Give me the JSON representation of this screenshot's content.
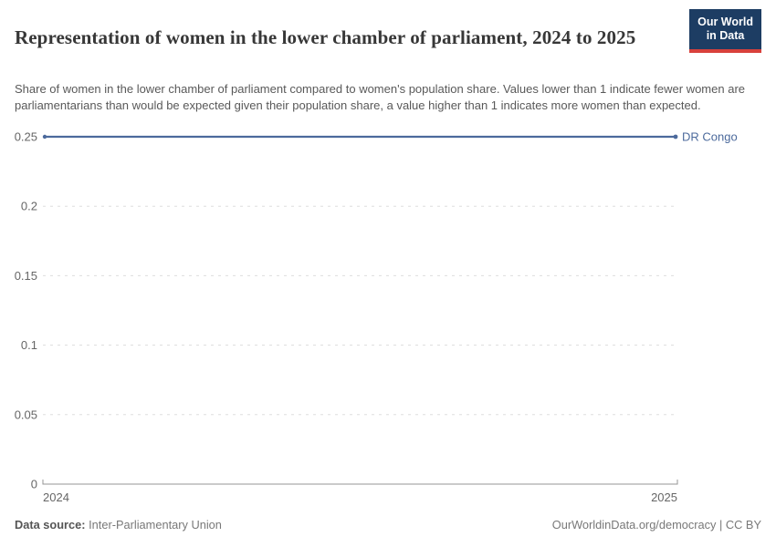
{
  "header": {
    "title": "Representation of women in the lower chamber of parliament, 2024 to 2025",
    "subtitle": "Share of women in the lower chamber of parliament compared to women's population share. Values lower than 1 indicate fewer women are parliamentarians than would be expected given their population share, a value higher than 1 indicates more women than expected.",
    "logo": {
      "line1": "Our World",
      "line2": "in Data",
      "bg_color": "#1d3d63",
      "accent_color": "#d8413c"
    }
  },
  "chart_data": {
    "type": "line",
    "title": "Representation of women in the lower chamber of parliament, 2024 to 2025",
    "x": [
      2024,
      2025
    ],
    "xtick_labels": [
      "2024",
      "2025"
    ],
    "series": [
      {
        "name": "DR Congo",
        "values": [
          0.25,
          0.25
        ],
        "color": "#4C6A9C"
      }
    ],
    "ylim": [
      0,
      0.25
    ],
    "yticks": [
      0,
      0.05,
      0.1,
      0.15,
      0.2,
      0.25
    ],
    "ytick_labels": [
      "0",
      "0.05",
      "0.1",
      "0.15",
      "0.2",
      "0.25"
    ],
    "xlabel": "",
    "ylabel": "",
    "grid": "horizontal-dashed",
    "grid_color": "#dddddd",
    "axis_color": "#949494",
    "tick_label_color": "#666666",
    "legend_position": "label-at-line-end"
  },
  "footer": {
    "source_label": "Data source:",
    "source_value": "Inter-Parliamentary Union",
    "credit": "OurWorldinData.org/democracy | CC BY"
  }
}
